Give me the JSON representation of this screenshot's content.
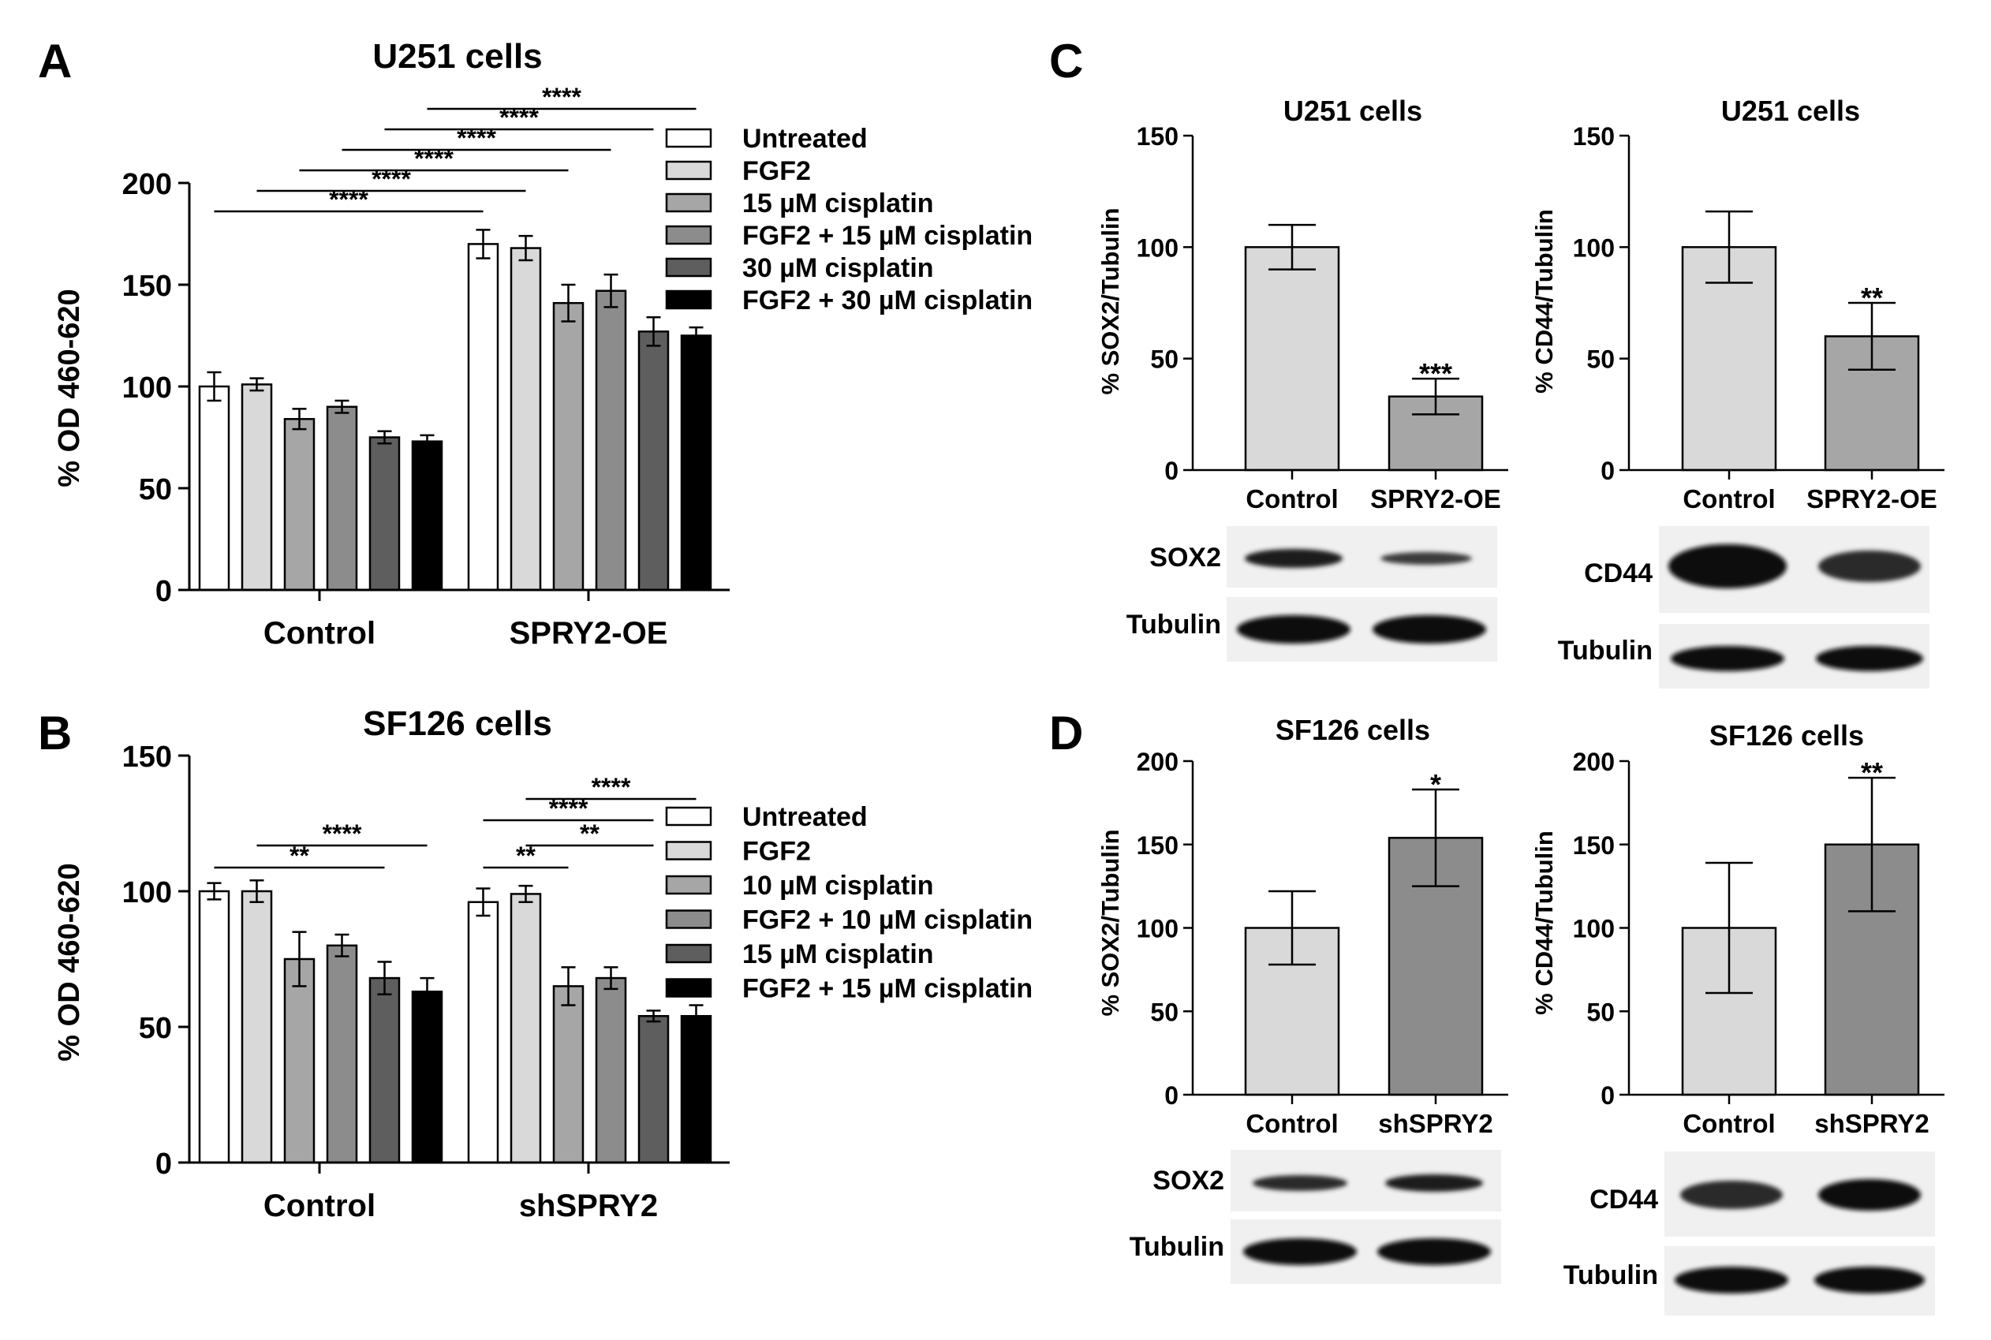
{
  "panels": {
    "A": {
      "letter": "A",
      "chart_data": {
        "type": "bar",
        "title": "U251 cells",
        "ylabel": "% OD 460-620",
        "ylim": [
          0,
          200
        ],
        "yticks": [
          0,
          50,
          100,
          150,
          200
        ],
        "categories": [
          "Control",
          "SPRY2-OE"
        ],
        "series": [
          {
            "name": "Untreated",
            "color": "#ffffff",
            "values": [
              100,
              170
            ],
            "errors": [
              7,
              7
            ]
          },
          {
            "name": "FGF2",
            "color": "#d9d9d9",
            "values": [
              101,
              168
            ],
            "errors": [
              3,
              6
            ]
          },
          {
            "name": "15 µM cisplatin",
            "color": "#a6a6a6",
            "values": [
              84,
              141
            ],
            "errors": [
              5,
              9
            ]
          },
          {
            "name": "FGF2 + 15 µM cisplatin",
            "color": "#8c8c8c",
            "values": [
              90,
              147
            ],
            "errors": [
              3,
              8
            ]
          },
          {
            "name": "30 µM cisplatin",
            "color": "#5e5e5e",
            "values": [
              75,
              127
            ],
            "errors": [
              3,
              7
            ]
          },
          {
            "name": "FGF2 + 30 µM cisplatin",
            "color": "#000000",
            "values": [
              73,
              125
            ],
            "errors": [
              3,
              4
            ]
          }
        ],
        "significance": [
          {
            "from": [
              0,
              0
            ],
            "to": [
              1,
              0
            ],
            "label": "****"
          },
          {
            "from": [
              0,
              1
            ],
            "to": [
              1,
              1
            ],
            "label": "****"
          },
          {
            "from": [
              0,
              2
            ],
            "to": [
              1,
              2
            ],
            "label": "****"
          },
          {
            "from": [
              0,
              3
            ],
            "to": [
              1,
              3
            ],
            "label": "****"
          },
          {
            "from": [
              0,
              4
            ],
            "to": [
              1,
              4
            ],
            "label": "****"
          },
          {
            "from": [
              0,
              5
            ],
            "to": [
              1,
              5
            ],
            "label": "****"
          }
        ]
      }
    },
    "B": {
      "letter": "B",
      "chart_data": {
        "type": "bar",
        "title": "SF126 cells",
        "ylabel": "% OD 460-620",
        "ylim": [
          0,
          150
        ],
        "yticks": [
          0,
          50,
          100,
          150
        ],
        "categories": [
          "Control",
          "shSPRY2"
        ],
        "series": [
          {
            "name": "Untreated",
            "color": "#ffffff",
            "values": [
              100,
              96
            ],
            "errors": [
              3,
              5
            ]
          },
          {
            "name": "FGF2",
            "color": "#d9d9d9",
            "values": [
              100,
              99
            ],
            "errors": [
              4,
              3
            ]
          },
          {
            "name": "10 µM cisplatin",
            "color": "#a6a6a6",
            "values": [
              75,
              65
            ],
            "errors": [
              10,
              7
            ]
          },
          {
            "name": "FGF2 + 10 µM cisplatin",
            "color": "#8c8c8c",
            "values": [
              80,
              68
            ],
            "errors": [
              4,
              4
            ]
          },
          {
            "name": "15 µM cisplatin",
            "color": "#5e5e5e",
            "values": [
              68,
              54
            ],
            "errors": [
              6,
              2
            ]
          },
          {
            "name": "FGF2 + 15 µM cisplatin",
            "color": "#000000",
            "values": [
              63,
              54
            ],
            "errors": [
              5,
              4
            ]
          }
        ],
        "significance": [
          {
            "from": [
              0,
              0
            ],
            "to": [
              0,
              4
            ],
            "label": "**"
          },
          {
            "from": [
              0,
              1
            ],
            "to": [
              0,
              5
            ],
            "label": "****"
          },
          {
            "from": [
              1,
              0
            ],
            "to": [
              1,
              2
            ],
            "label": "**"
          },
          {
            "from": [
              1,
              1
            ],
            "to": [
              1,
              4
            ],
            "label": "**"
          },
          {
            "from": [
              1,
              0
            ],
            "to": [
              1,
              4
            ],
            "label": "****"
          },
          {
            "from": [
              1,
              1
            ],
            "to": [
              1,
              5
            ],
            "label": "****"
          }
        ]
      }
    },
    "C": {
      "letter": "C",
      "charts": [
        {
          "type": "bar",
          "title": "U251 cells",
          "ylabel": "% SOX2/Tubulin",
          "ylim": [
            0,
            150
          ],
          "yticks": [
            0,
            50,
            100,
            150
          ],
          "categories": [
            "Control",
            "SPRY2-OE"
          ],
          "values": [
            100,
            33
          ],
          "errors": [
            10,
            8
          ],
          "colors": [
            "#d9d9d9",
            "#a6a6a6"
          ],
          "stars": [
            "",
            "***"
          ],
          "blot": {
            "labels": [
              "SOX2",
              "Tubulin"
            ]
          }
        },
        {
          "type": "bar",
          "title": "U251 cells",
          "ylabel": "% CD44/Tubulin",
          "ylim": [
            0,
            150
          ],
          "yticks": [
            0,
            50,
            100,
            150
          ],
          "categories": [
            "Control",
            "SPRY2-OE"
          ],
          "values": [
            100,
            60
          ],
          "errors": [
            16,
            15
          ],
          "colors": [
            "#d9d9d9",
            "#a6a6a6"
          ],
          "stars": [
            "",
            "**"
          ],
          "blot": {
            "labels": [
              "CD44",
              "Tubulin"
            ]
          }
        }
      ]
    },
    "D": {
      "letter": "D",
      "charts": [
        {
          "type": "bar",
          "title": "SF126 cells",
          "ylabel": "% SOX2/Tubulin",
          "ylim": [
            0,
            200
          ],
          "yticks": [
            0,
            50,
            100,
            150,
            200
          ],
          "categories": [
            "Control",
            "shSPRY2"
          ],
          "values": [
            100,
            154
          ],
          "errors": [
            22,
            29
          ],
          "colors": [
            "#d9d9d9",
            "#8c8c8c"
          ],
          "stars": [
            "",
            "*"
          ],
          "blot": {
            "labels": [
              "SOX2",
              "Tubulin"
            ]
          }
        },
        {
          "type": "bar",
          "title": "SF126 cells",
          "ylabel": "% CD44/Tubulin",
          "ylim": [
            0,
            200
          ],
          "yticks": [
            0,
            50,
            100,
            150,
            200
          ],
          "categories": [
            "Control",
            "shSPRY2"
          ],
          "values": [
            100,
            150
          ],
          "errors": [
            39,
            40
          ],
          "colors": [
            "#d9d9d9",
            "#8c8c8c"
          ],
          "stars": [
            "",
            "**"
          ],
          "blot": {
            "labels": [
              "CD44",
              "Tubulin"
            ]
          }
        }
      ]
    }
  }
}
